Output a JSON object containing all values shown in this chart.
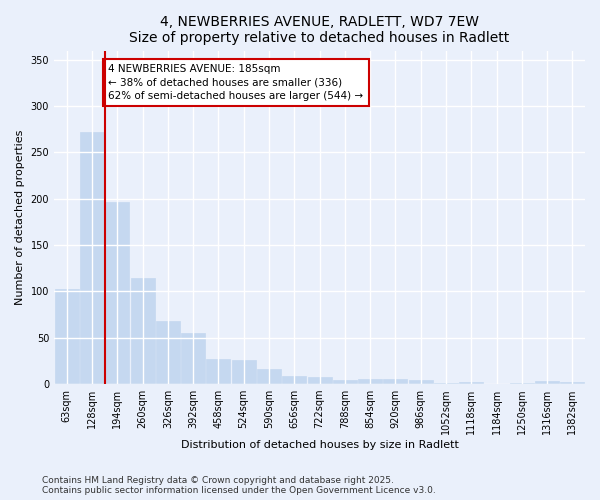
{
  "title1": "4, NEWBERRIES AVENUE, RADLETT, WD7 7EW",
  "title2": "Size of property relative to detached houses in Radlett",
  "xlabel": "Distribution of detached houses by size in Radlett",
  "ylabel": "Number of detached properties",
  "bar_color": "#c5d8f0",
  "bar_edge_color": "#c5d8f0",
  "categories": [
    "63sqm",
    "128sqm",
    "194sqm",
    "260sqm",
    "326sqm",
    "392sqm",
    "458sqm",
    "524sqm",
    "590sqm",
    "656sqm",
    "722sqm",
    "788sqm",
    "854sqm",
    "920sqm",
    "986sqm",
    "1052sqm",
    "1118sqm",
    "1184sqm",
    "1250sqm",
    "1316sqm",
    "1382sqm"
  ],
  "values": [
    103,
    272,
    197,
    115,
    68,
    55,
    27,
    26,
    16,
    9,
    8,
    4,
    5,
    5,
    4,
    1,
    2,
    0,
    1,
    3,
    2
  ],
  "vline_pos": 1.5,
  "vline_color": "#cc0000",
  "annotation_text": "4 NEWBERRIES AVENUE: 185sqm\n← 38% of detached houses are smaller (336)\n62% of semi-detached houses are larger (544) →",
  "annotation_box_color": "#ffffff",
  "annotation_border_color": "#cc0000",
  "ylim": [
    0,
    360
  ],
  "yticks": [
    0,
    50,
    100,
    150,
    200,
    250,
    300,
    350
  ],
  "footnote1": "Contains HM Land Registry data © Crown copyright and database right 2025.",
  "footnote2": "Contains public sector information licensed under the Open Government Licence v3.0.",
  "background_color": "#eaf0fb",
  "grid_color": "#ffffff",
  "title_fontsize": 10,
  "axis_label_fontsize": 8,
  "tick_fontsize": 7,
  "annotation_fontsize": 7.5,
  "footnote_fontsize": 6.5
}
